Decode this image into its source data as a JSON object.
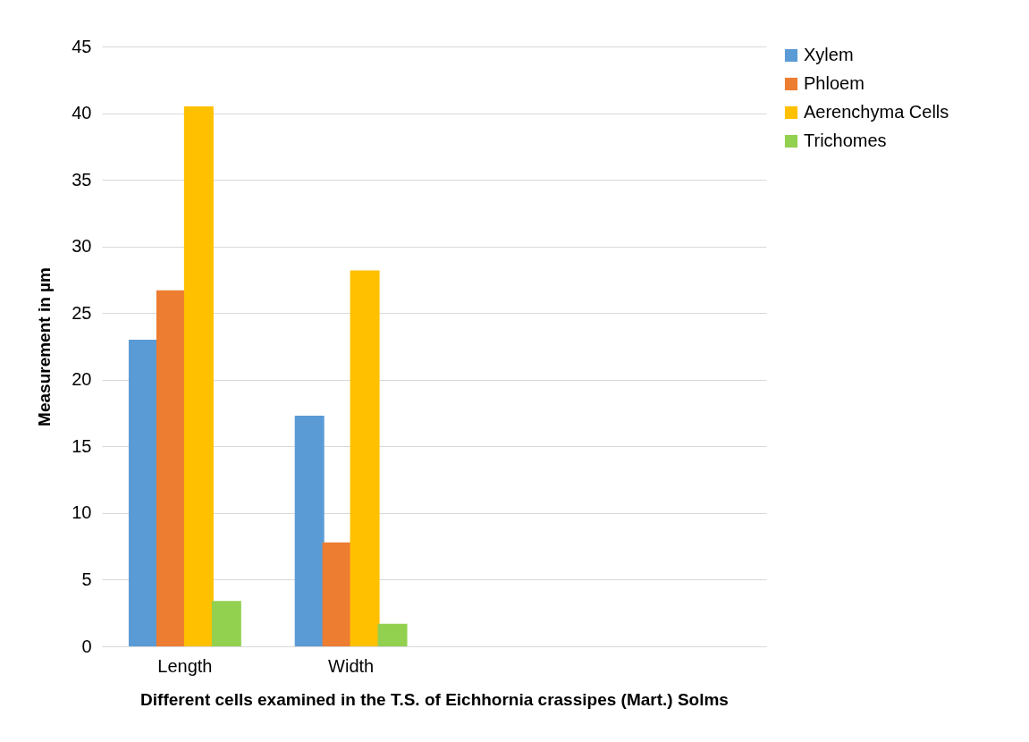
{
  "chart_data": {
    "type": "bar",
    "xlabel": "Different cells examined in the T.S. of Eichhornia crassipes (Mart.) Solms",
    "ylabel": "Measurement in µm",
    "categories": [
      "Length",
      "Width",
      null,
      null
    ],
    "series": [
      {
        "name": "Xylem",
        "color": "#5b9bd5",
        "values": [
          23,
          17.3,
          null,
          null
        ]
      },
      {
        "name": "Phloem",
        "color": "#ed7d31",
        "values": [
          26.7,
          7.8,
          null,
          null
        ]
      },
      {
        "name": "Aerenchyma Cells",
        "color": "#ffc000",
        "values": [
          40.5,
          28.2,
          null,
          null
        ]
      },
      {
        "name": "Trichomes",
        "color": "#92d050",
        "values": [
          3.4,
          1.7,
          null,
          null
        ]
      }
    ],
    "ylim": [
      0,
      45
    ],
    "yticks": [
      0,
      5,
      10,
      15,
      20,
      25,
      30,
      35,
      40,
      45
    ],
    "grid": "y",
    "legend": "right"
  }
}
